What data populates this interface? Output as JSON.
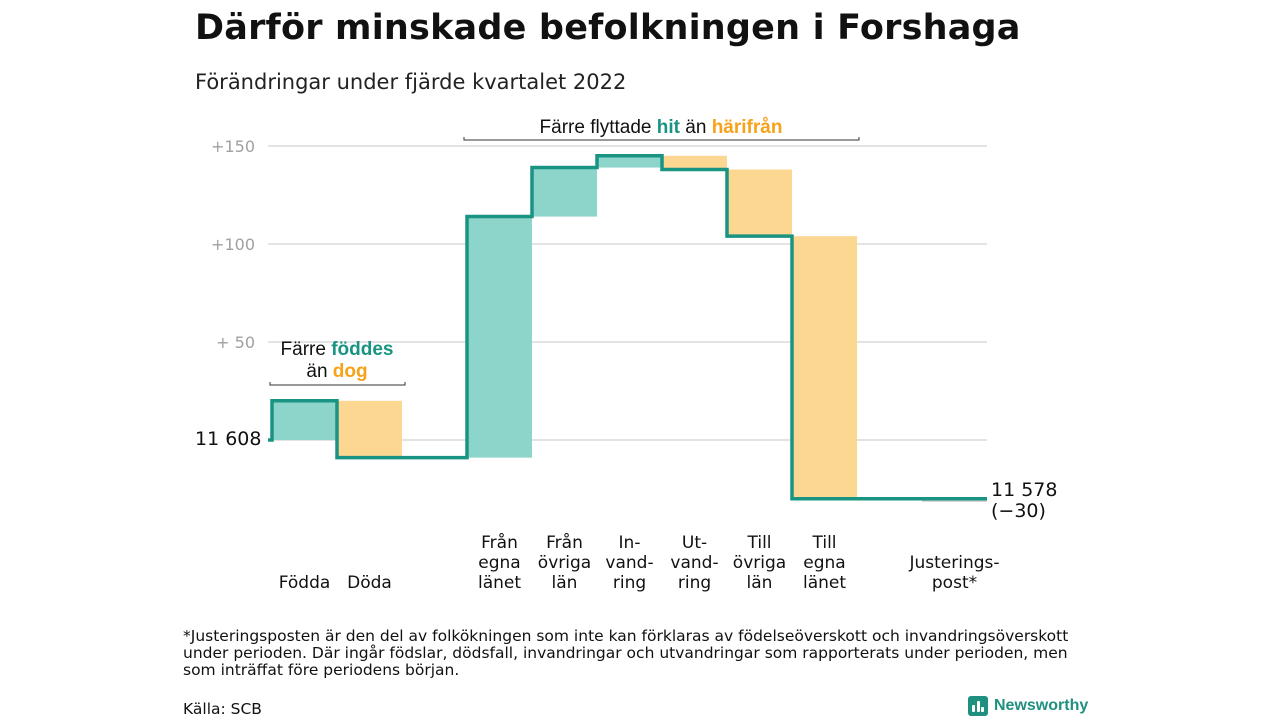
{
  "title": "Därför minskade befolkningen i Forshaga",
  "subtitle": "Förändringar under fjärde kvartalet 2022",
  "colors": {
    "teal": "#1a9482",
    "teal_light": "#8dd4ca",
    "orange": "#f7a21b",
    "orange_light": "#fbd792",
    "grid": "#e3e3e3",
    "tick_text": "#a0a0a0"
  },
  "chart_data": {
    "type": "waterfall",
    "y_ticks": [
      {
        "value": 50,
        "label": "+ 50"
      },
      {
        "value": 100,
        "label": "+100"
      },
      {
        "value": 150,
        "label": "+150"
      }
    ],
    "ylim": [
      -35,
      160
    ],
    "grid": true,
    "start_value": 0,
    "start_label": "11 608",
    "end_label_lines": [
      "11 578",
      "(−30)"
    ],
    "steps": [
      {
        "label_lines": [
          "Födda"
        ],
        "change": 20,
        "kind": "in"
      },
      {
        "label_lines": [
          "Döda"
        ],
        "change": -29,
        "kind": "out"
      },
      {
        "label_lines": [
          "Från",
          "egna",
          "länet"
        ],
        "change": 123,
        "kind": "in"
      },
      {
        "label_lines": [
          "Från",
          "övriga",
          "län"
        ],
        "change": 25,
        "kind": "in"
      },
      {
        "label_lines": [
          "In-",
          "vand-",
          "ring"
        ],
        "change": 6,
        "kind": "in"
      },
      {
        "label_lines": [
          "Ut-",
          "vand-",
          "ring"
        ],
        "change": -7,
        "kind": "out"
      },
      {
        "label_lines": [
          "Till",
          "övriga",
          "län"
        ],
        "change": -34,
        "kind": "out"
      },
      {
        "label_lines": [
          "Till",
          "egna",
          "länet"
        ],
        "change": -134,
        "kind": "out"
      },
      {
        "label_lines": [
          "Justerings-",
          "post*"
        ],
        "change": 0,
        "kind": "adjust"
      }
    ],
    "annotations": [
      {
        "line1": [
          {
            "text": "Färre ",
            "style": "plain"
          },
          {
            "text": "föddes",
            "style": "teal"
          }
        ],
        "line2": [
          {
            "text": "än ",
            "style": "plain"
          },
          {
            "text": "dog",
            "style": "orange"
          }
        ]
      },
      {
        "line1": [
          {
            "text": "Färre flyttade ",
            "style": "plain"
          },
          {
            "text": "hit",
            "style": "teal"
          },
          {
            "text": " än ",
            "style": "plain"
          },
          {
            "text": "härifrån",
            "style": "orange"
          }
        ]
      }
    ]
  },
  "footnote": "*Justeringsposten är den del av folkökningen som inte kan förklaras av födelseöverskott och invandringsöverskott under perioden. Där ingår födslar, dödsfall, invandringar och utvandringar som rapporterats under perioden, men som inträffat före periodens början.",
  "source": "Källa: SCB",
  "brand": "Newsworthy"
}
